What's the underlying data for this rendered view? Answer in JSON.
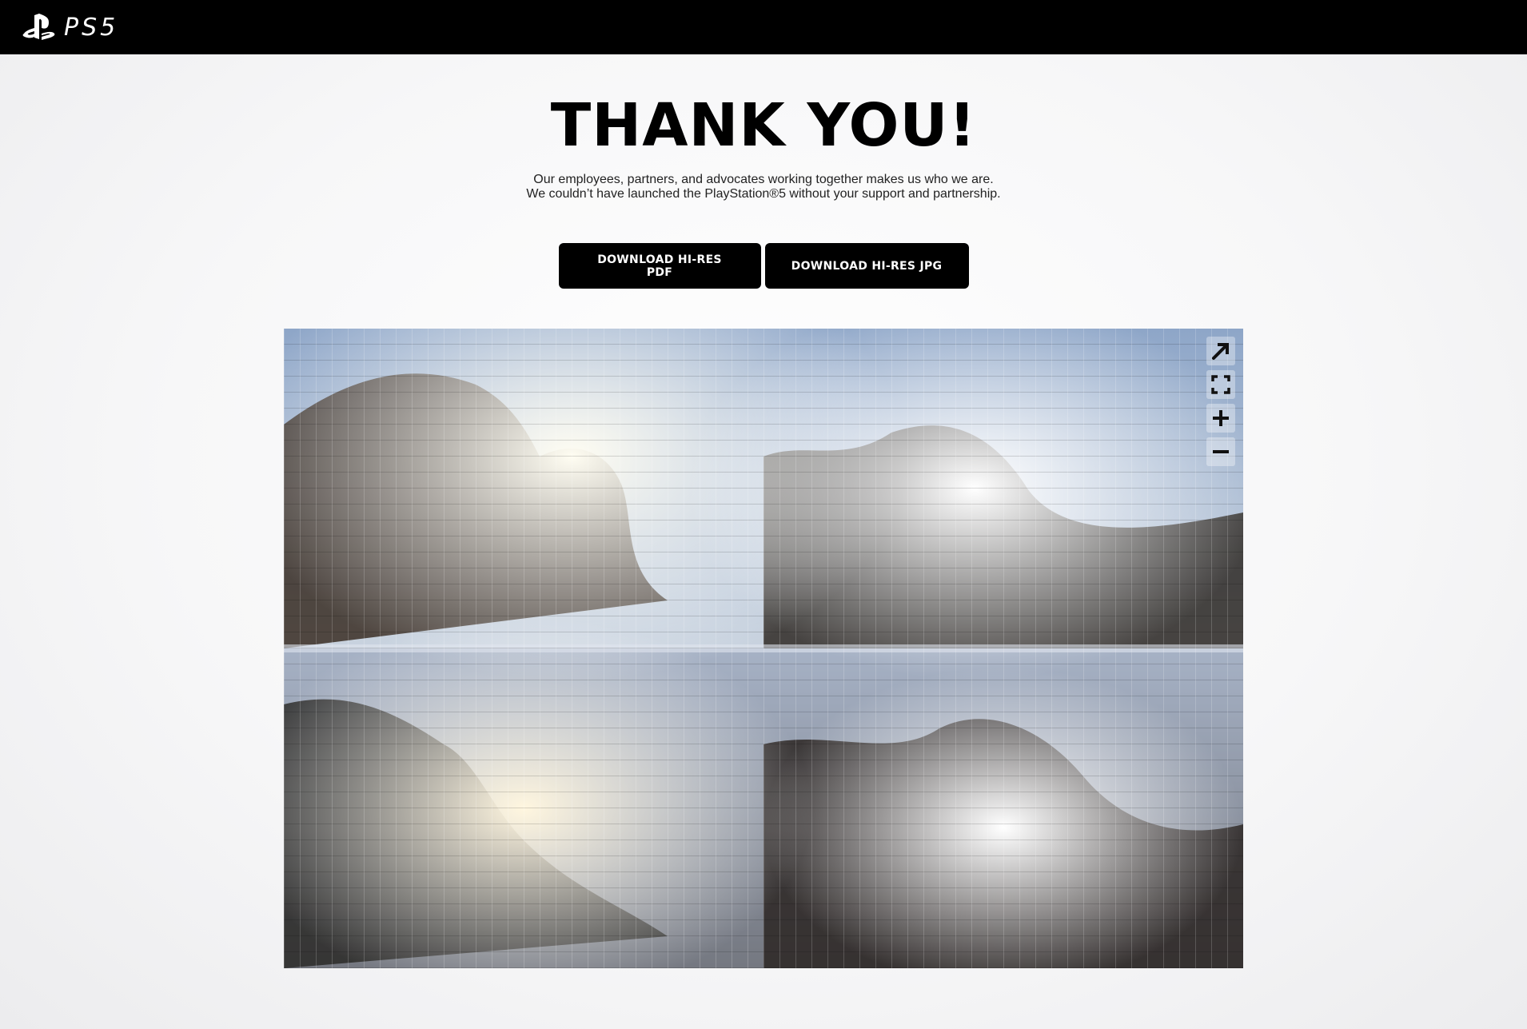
{
  "header": {
    "logo_text": "PS5",
    "background": "#000000"
  },
  "hero": {
    "title": "THANK YOU!",
    "subtitle_line1": "Our employees, partners, and advocates working together makes us who we are.",
    "subtitle_line2": "We couldn’t have launched the PlayStation®5 without your support and partnership."
  },
  "buttons": {
    "pdf_label": "DOWNLOAD HI-RES PDF",
    "jpg_label": "DOWNLOAD HI-RES JPG"
  },
  "viewer": {
    "controls": [
      "open-in-new-icon",
      "fullscreen-icon",
      "zoom-in-icon",
      "zoom-out-icon"
    ]
  }
}
